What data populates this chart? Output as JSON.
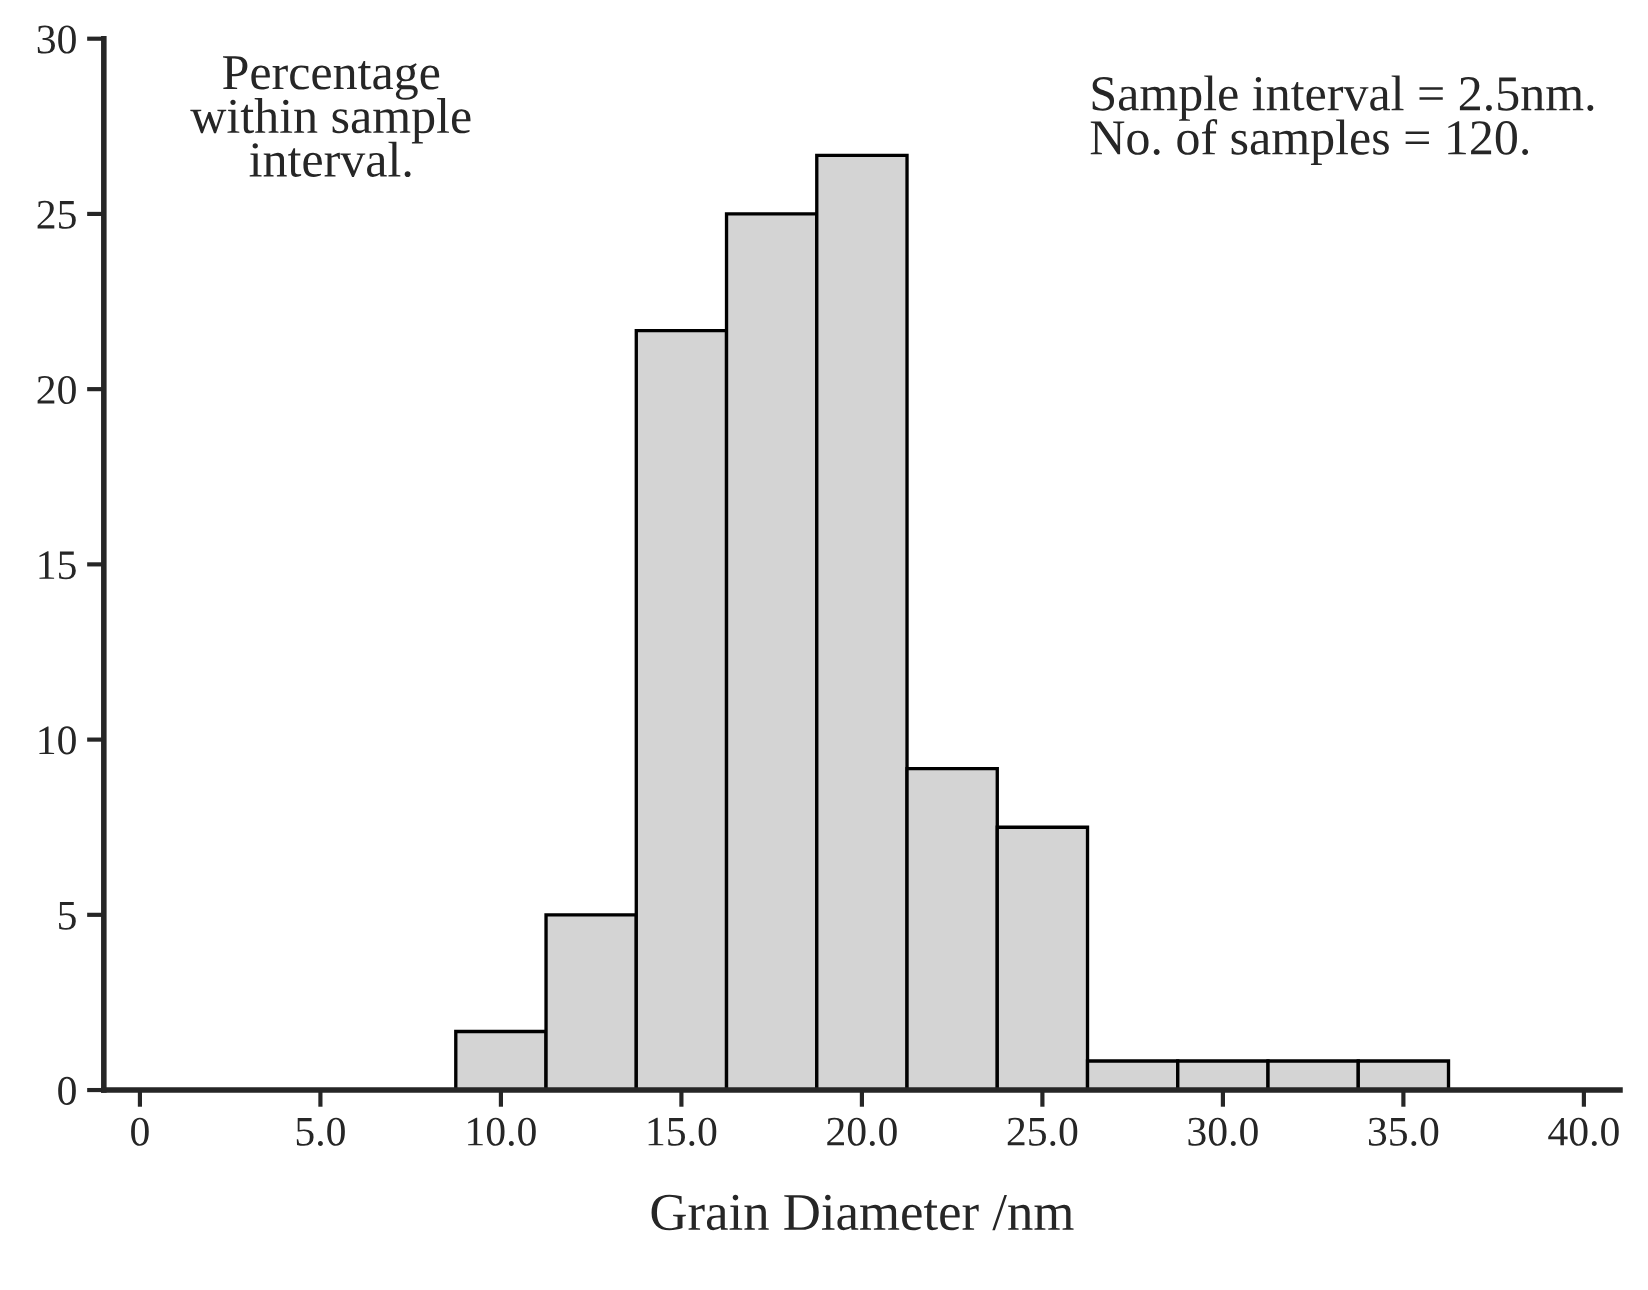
{
  "chart_data": {
    "type": "histogram",
    "xlabel": "Grain Diameter /nm",
    "bins": [
      8.75,
      11.25,
      13.75,
      16.25,
      18.75,
      21.25,
      23.75,
      26.25,
      28.75,
      31.25,
      33.75,
      36.25
    ],
    "values": [
      1.67,
      5.0,
      21.67,
      25.0,
      26.67,
      9.17,
      7.5,
      0.83,
      0.83,
      0.83,
      0.83
    ],
    "color": "#d4d4d4",
    "xlim": [
      -1,
      41
    ],
    "ylim": [
      0,
      30
    ],
    "xticks": [
      0,
      {
        "value": 5,
        "label": "5.0"
      },
      {
        "value": 10,
        "label": "10.0"
      },
      {
        "value": 15,
        "label": "15.0"
      },
      {
        "value": 20,
        "label": "20.0"
      },
      {
        "value": 25,
        "label": "25.0"
      },
      {
        "value": 30,
        "label": "30.0"
      },
      {
        "value": 35,
        "label": "35.0"
      },
      {
        "value": 40,
        "label": "40.0"
      }
    ],
    "yticks": [
      0,
      5,
      10,
      15,
      20,
      25,
      30
    ],
    "annotations": [
      "Percentage\nwithin sample\ninterval.",
      "Sample interval = 2.5nm.\nNo. of samples = 120."
    ],
    "grid": false,
    "legend": false
  }
}
